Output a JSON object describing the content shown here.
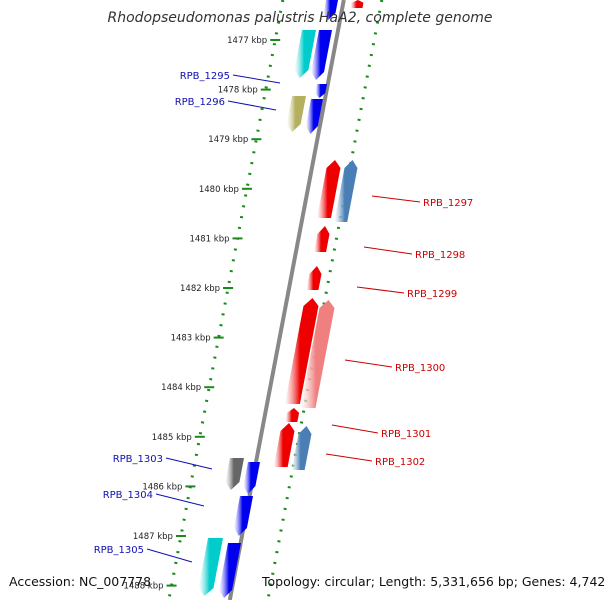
{
  "title": "Rhodopseudomonas palustris HaA2, complete genome",
  "footer": {
    "accession": "Accession: NC_007778",
    "summary": "Topology: circular; Length: 5,331,656 bp; Genes: 4,742"
  },
  "colors": {
    "forward_gene": "#0000ee",
    "reverse_gene": "#ee0000",
    "forward_label": "#1010b0",
    "reverse_label": "#cc0000",
    "backbone": "#888888",
    "track_dots": "#1a8a1a",
    "rna_cyan": "#00cccc",
    "gray_gene": "#666666",
    "olive_gene": "#b5b060",
    "steel_gene": "#4a7fb5",
    "pink_gene": "#f08080"
  },
  "kbp_ticks": [
    "1477 kbp",
    "1478 kbp",
    "1479 kbp",
    "1480 kbp",
    "1481 kbp",
    "1482 kbp",
    "1483 kbp",
    "1484 kbp",
    "1485 kbp",
    "1486 kbp",
    "1487 kbp",
    "1488 kbp"
  ],
  "left_labels": [
    "RPB_1295",
    "RPB_1296",
    "RPB_1303",
    "RPB_1304",
    "RPB_1305"
  ],
  "right_labels": [
    "RPB_1297",
    "RPB_1298",
    "RPB_1299",
    "RPB_1300",
    "RPB_1301",
    "RPB_1302"
  ]
}
